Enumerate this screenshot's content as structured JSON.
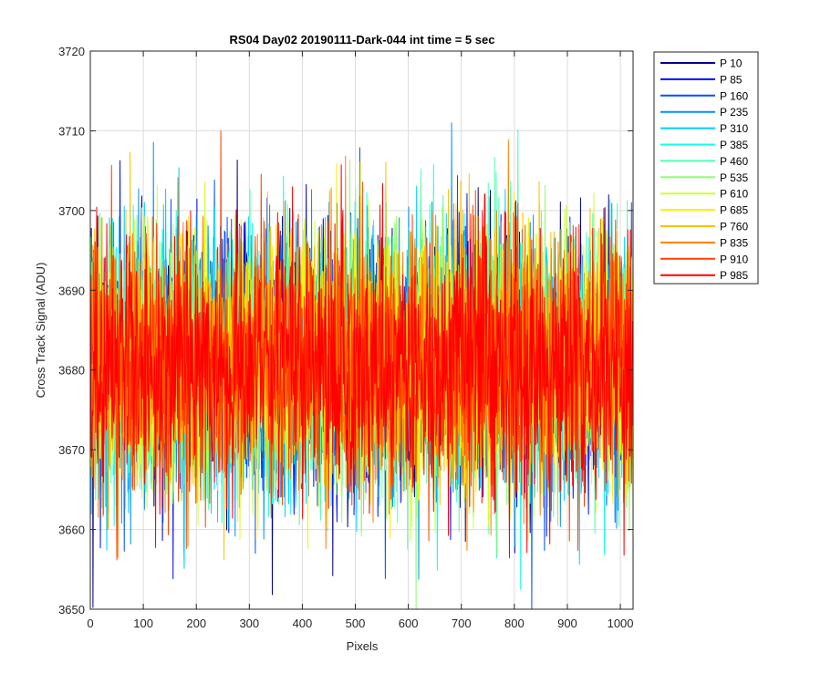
{
  "chart_data": {
    "type": "line",
    "title": "RS04 Day02 20190111-Dark-044 int time = 5 sec",
    "xlabel": "Pixels",
    "ylabel": "Cross Track Signal (ADU)",
    "xlim": [
      0,
      1024
    ],
    "ylim": [
      3650,
      3720
    ],
    "xticks": [
      0,
      100,
      200,
      300,
      400,
      500,
      600,
      700,
      800,
      900,
      1000
    ],
    "yticks": [
      3650,
      3660,
      3670,
      3680,
      3690,
      3700,
      3710,
      3720
    ],
    "grid": true,
    "legend_position": "outside-top-right",
    "n_points": 1024,
    "noise_model": {
      "mean": 3681,
      "approx_std": 8,
      "approx_min": 3650,
      "approx_max": 3711
    },
    "series": [
      {
        "name": "P 10",
        "color": "#00008F"
      },
      {
        "name": "P 85",
        "color": "#0010FF"
      },
      {
        "name": "P 160",
        "color": "#0050FF"
      },
      {
        "name": "P 235",
        "color": "#0090FF"
      },
      {
        "name": "P 310",
        "color": "#00CFFF"
      },
      {
        "name": "P 385",
        "color": "#10FFEF"
      },
      {
        "name": "P 460",
        "color": "#50FFAF"
      },
      {
        "name": "P 535",
        "color": "#8FFF70"
      },
      {
        "name": "P 610",
        "color": "#CFFF30"
      },
      {
        "name": "P 685",
        "color": "#FFEF00"
      },
      {
        "name": "P 760",
        "color": "#FFBF00"
      },
      {
        "name": "P 835",
        "color": "#FF8000"
      },
      {
        "name": "P 910",
        "color": "#FF4000"
      },
      {
        "name": "P 985",
        "color": "#FF0000"
      }
    ]
  }
}
